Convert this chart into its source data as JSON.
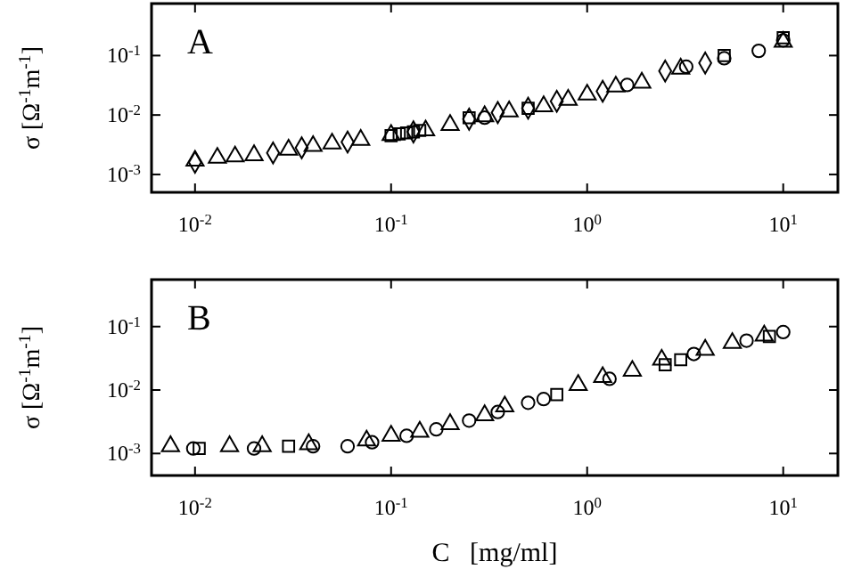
{
  "chart_data": [
    {
      "type": "scatter",
      "ylabel": "σ [Ω$^{-1}$m$^{-1}$]",
      "annotations": [
        "A"
      ],
      "log": "xy",
      "grid": false,
      "xlim": [
        0.006,
        19
      ],
      "ylim": [
        0.0005,
        0.75
      ],
      "xticks": [
        {
          "value": 0.01,
          "label": "10$^{-2}$"
        },
        {
          "value": 0.1,
          "label": "10$^{-1}$"
        },
        {
          "value": 1,
          "label": "10$^{0}$"
        },
        {
          "value": 10,
          "label": "10$^{1}$"
        }
      ],
      "yticks": [
        {
          "value": 0.001,
          "label": "10$^{-3}$"
        },
        {
          "value": 0.01,
          "label": "10$^{-2}$"
        },
        {
          "value": 0.1,
          "label": "10$^{-1}$"
        }
      ],
      "series": [
        {
          "color": "#000000",
          "marker": "triangle",
          "x": [
            0.01,
            0.013,
            0.016,
            0.02,
            0.03,
            0.04,
            0.05,
            0.07,
            0.1,
            0.15,
            0.2,
            0.3,
            0.4,
            0.6,
            0.8,
            1,
            1.4,
            1.9,
            3,
            10
          ],
          "values": [
            0.0017,
            0.0019,
            0.002,
            0.0021,
            0.0026,
            0.003,
            0.0033,
            0.0038,
            0.0046,
            0.0055,
            0.0068,
            0.0095,
            0.0115,
            0.014,
            0.018,
            0.022,
            0.03,
            0.035,
            0.06,
            0.17
          ]
        },
        {
          "color": "#000000",
          "marker": "diamond",
          "x": [
            0.01,
            0.025,
            0.035,
            0.06,
            0.13,
            0.25,
            0.35,
            0.5,
            0.7,
            1.2,
            2.5,
            4
          ],
          "values": [
            0.0016,
            0.0023,
            0.0028,
            0.0035,
            0.0052,
            0.0085,
            0.011,
            0.013,
            0.017,
            0.025,
            0.055,
            0.075
          ]
        },
        {
          "color": "#000000",
          "marker": "square",
          "x": [
            0.1,
            0.11,
            0.12,
            0.13,
            0.14,
            0.25,
            0.5,
            5,
            10
          ],
          "values": [
            0.0045,
            0.0048,
            0.005,
            0.0052,
            0.0055,
            0.009,
            0.013,
            0.1,
            0.2
          ]
        },
        {
          "color": "#000000",
          "marker": "circle",
          "x": [
            0.3,
            1.6,
            3.2,
            5,
            7.5,
            10
          ],
          "values": [
            0.009,
            0.032,
            0.065,
            0.09,
            0.12,
            0.18
          ]
        }
      ]
    },
    {
      "type": "scatter",
      "xlabel": "C   [mg/ml]",
      "ylabel": "σ [Ω$^{-1}$m$^{-1}$]",
      "annotations": [
        "B"
      ],
      "log": "xy",
      "grid": false,
      "xlim": [
        0.006,
        19
      ],
      "ylim": [
        0.00045,
        0.55
      ],
      "xticks": [
        {
          "value": 0.01,
          "label": "10$^{-2}$"
        },
        {
          "value": 0.1,
          "label": "10$^{-1}$"
        },
        {
          "value": 1,
          "label": "10$^{0}$"
        },
        {
          "value": 10,
          "label": "10$^{1}$"
        }
      ],
      "yticks": [
        {
          "value": 0.001,
          "label": "10$^{-3}$"
        },
        {
          "value": 0.01,
          "label": "10$^{-2}$"
        },
        {
          "value": 0.1,
          "label": "10$^{-1}$"
        }
      ],
      "series": [
        {
          "color": "#000000",
          "marker": "triangle",
          "x": [
            0.0075,
            0.015,
            0.022,
            0.038,
            0.075,
            0.1,
            0.14,
            0.2,
            0.3,
            0.38,
            0.9,
            1.2,
            1.7,
            2.4,
            4,
            5.5,
            8
          ],
          "values": [
            0.0013,
            0.0013,
            0.0013,
            0.0014,
            0.0016,
            0.0019,
            0.0022,
            0.0029,
            0.004,
            0.0055,
            0.012,
            0.016,
            0.02,
            0.03,
            0.043,
            0.055,
            0.072
          ]
        },
        {
          "color": "#000000",
          "marker": "circle",
          "x": [
            0.0098,
            0.02,
            0.04,
            0.06,
            0.08,
            0.12,
            0.17,
            0.25,
            0.35,
            0.5,
            0.6,
            1.3,
            3.5,
            6.5,
            10
          ],
          "values": [
            0.0012,
            0.0012,
            0.0013,
            0.0013,
            0.0015,
            0.0019,
            0.0024,
            0.0033,
            0.0045,
            0.0063,
            0.0072,
            0.015,
            0.037,
            0.06,
            0.082
          ]
        },
        {
          "color": "#000000",
          "marker": "square",
          "x": [
            0.0105,
            0.03,
            0.7,
            2.5,
            3,
            8.5
          ],
          "values": [
            0.0012,
            0.0013,
            0.0085,
            0.025,
            0.03,
            0.07
          ]
        }
      ]
    }
  ]
}
